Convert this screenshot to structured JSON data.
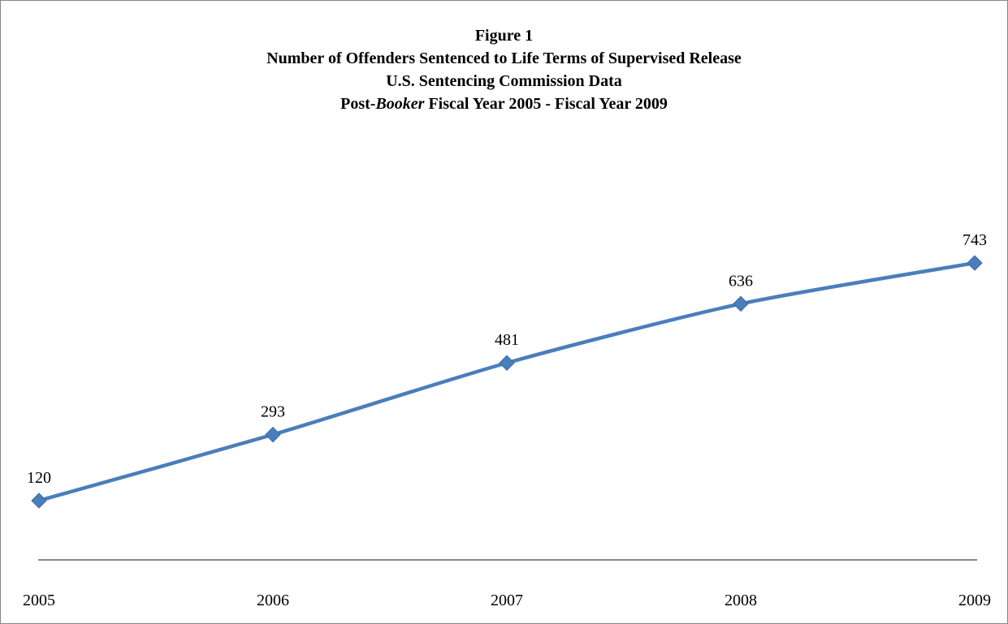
{
  "title": {
    "line1": "Figure 1",
    "line2": "Number of Offenders Sentenced to Life Terms of Supervised Release",
    "line3": "U.S. Sentencing Commission Data",
    "line4_prefix": "Post-",
    "line4_italic": "Booker",
    "line4_suffix": " Fiscal Year 2005 - Fiscal Year 2009"
  },
  "colors": {
    "series": "#4a7ebb",
    "axis": "#868686"
  },
  "chart_data": {
    "type": "line",
    "categories": [
      "2005",
      "2006",
      "2007",
      "2008",
      "2009"
    ],
    "values": [
      120,
      293,
      481,
      636,
      743
    ],
    "data_labels": [
      "120",
      "293",
      "481",
      "636",
      "743"
    ],
    "marker": "diamond",
    "grid": false,
    "legend": "none"
  }
}
